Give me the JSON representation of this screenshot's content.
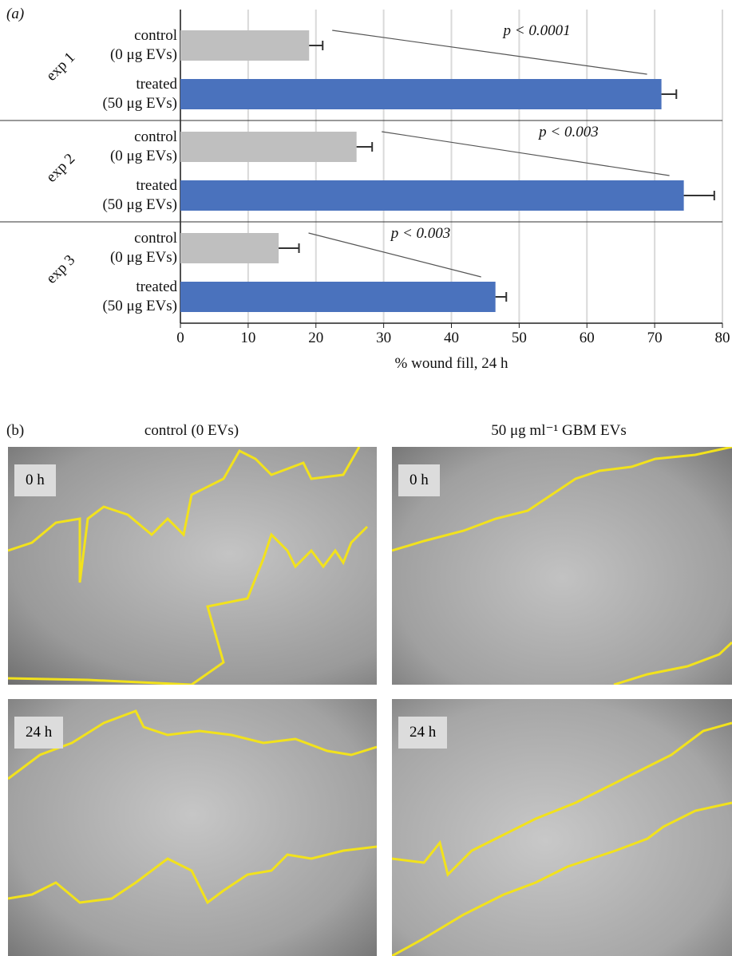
{
  "chart_data": {
    "type": "hbar",
    "panel_label": "(a)",
    "categories": [
      "control\n(0 μg EVs)",
      "treated\n(50 μg EVs)",
      "control\n(0 μg EVs)",
      "treated\n(50 μg EVs)",
      "control\n(0 μg EVs)",
      "treated\n(50 μg EVs)"
    ],
    "groups": [
      "exp 1",
      "exp 2",
      "exp 3"
    ],
    "values": [
      19,
      71,
      26,
      74.3,
      14.5,
      46.5
    ],
    "errors": [
      2,
      2.2,
      2.3,
      4.5,
      3,
      1.6
    ],
    "colors": [
      "#bfbfbf",
      "#4a72bd",
      "#bfbfbf",
      "#4a72bd",
      "#bfbfbf",
      "#4a72bd"
    ],
    "annotations": [
      "p < 0.0001",
      "p < 0.003",
      "p < 0.003"
    ],
    "xlabel": "% wound fill, 24 h",
    "xlim": [
      0,
      80
    ],
    "xticks": [
      0,
      10,
      20,
      30,
      40,
      50,
      60,
      70,
      80
    ],
    "grid": true
  },
  "panel_b": {
    "label": "(b)",
    "columns": [
      "control (0 EVs)",
      "50 μg ml⁻¹ GBM EVs"
    ],
    "times": [
      "0 h",
      "24 h"
    ]
  }
}
